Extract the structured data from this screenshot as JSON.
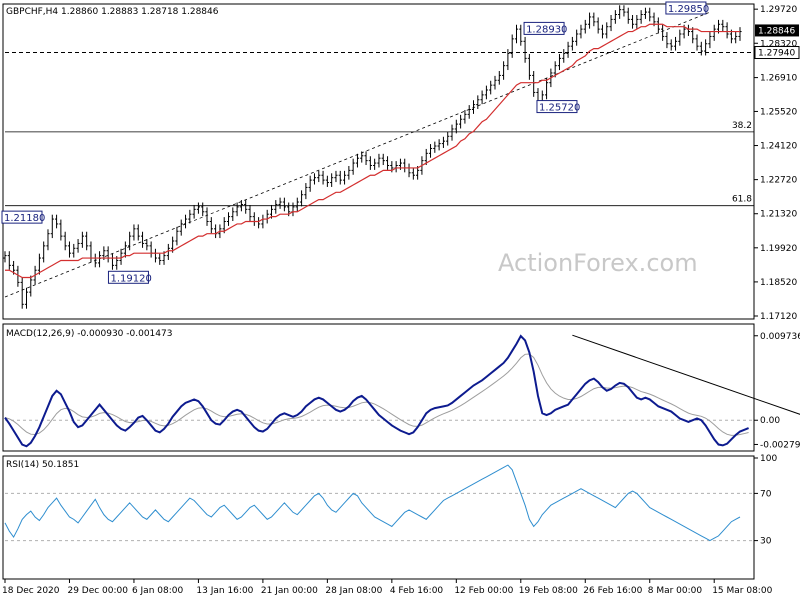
{
  "chart_data": [
    {
      "type": "candlestick",
      "header": "GBPCHF,H4  1.28860 1.28883 1.28718 1.28846",
      "watermark": "ActionForex.com",
      "ylim": [
        1.1712,
        1.2985
      ],
      "y_ticks": [
        "1.29720",
        "1.28320",
        "1.26910",
        "1.25520",
        "1.24120",
        "1.22720",
        "1.21320",
        "1.19920",
        "1.18520",
        "1.17120"
      ],
      "current_price": "1.28846",
      "hline_price": "1.27940",
      "fib_levels": [
        {
          "label": "38.2",
          "value": 1.2468
        },
        {
          "label": "61.8",
          "value": 1.2165
        }
      ],
      "annotations": [
        {
          "text": "1.21180",
          "x": 0,
          "y": 1.2118
        },
        {
          "text": "1.19120",
          "x": 25,
          "y": 1.1912
        },
        {
          "text": "1.28930",
          "x": 131,
          "y": 1.2893
        },
        {
          "text": "1.25720",
          "x": 134,
          "y": 1.2572
        },
        {
          "text": "1.29850",
          "x": 164,
          "y": 1.2985
        }
      ],
      "series": [
        {
          "kind": "close",
          "values": [
            1.196,
            1.192,
            1.19,
            1.185,
            1.176,
            1.181,
            1.186,
            1.19,
            1.195,
            1.2,
            1.205,
            1.211,
            1.209,
            1.204,
            1.2,
            1.197,
            1.199,
            1.201,
            1.204,
            1.2,
            1.195,
            1.193,
            1.196,
            1.198,
            1.195,
            1.192,
            1.194,
            1.197,
            1.2,
            1.204,
            1.207,
            1.204,
            1.201,
            1.2,
            1.197,
            1.195,
            1.194,
            1.196,
            1.199,
            1.202,
            1.206,
            1.209,
            1.211,
            1.213,
            1.215,
            1.216,
            1.214,
            1.21,
            1.207,
            1.205,
            1.207,
            1.21,
            1.212,
            1.214,
            1.216,
            1.217,
            1.215,
            1.212,
            1.21,
            1.209,
            1.211,
            1.213,
            1.215,
            1.217,
            1.218,
            1.216,
            1.214,
            1.216,
            1.218,
            1.221,
            1.224,
            1.227,
            1.228,
            1.229,
            1.227,
            1.226,
            1.228,
            1.229,
            1.227,
            1.229,
            1.231,
            1.234,
            1.236,
            1.237,
            1.235,
            1.233,
            1.234,
            1.236,
            1.235,
            1.233,
            1.232,
            1.233,
            1.234,
            1.232,
            1.23,
            1.229,
            1.231,
            1.235,
            1.238,
            1.24,
            1.241,
            1.242,
            1.243,
            1.245,
            1.248,
            1.25,
            1.252,
            1.254,
            1.256,
            1.258,
            1.26,
            1.262,
            1.264,
            1.266,
            1.268,
            1.27,
            1.274,
            1.279,
            1.285,
            1.289,
            1.284,
            1.277,
            1.27,
            1.263,
            1.258,
            1.262,
            1.267,
            1.271,
            1.274,
            1.277,
            1.279,
            1.282,
            1.284,
            1.287,
            1.289,
            1.291,
            1.294,
            1.292,
            1.289,
            1.287,
            1.29,
            1.293,
            1.295,
            1.297,
            1.296,
            1.293,
            1.291,
            1.293,
            1.295,
            1.296,
            1.294,
            1.292,
            1.289,
            1.286,
            1.283,
            1.282,
            1.284,
            1.287,
            1.289,
            1.288,
            1.285,
            1.282,
            1.28,
            1.283,
            1.286,
            1.289,
            1.291,
            1.29,
            1.287,
            1.285,
            1.286,
            1.288
          ]
        },
        {
          "kind": "sma",
          "values": [
            1.19,
            1.19,
            1.189,
            1.188,
            1.187,
            1.187,
            1.187,
            1.188,
            1.189,
            1.19,
            1.191,
            1.192,
            1.193,
            1.194,
            1.194,
            1.194,
            1.194,
            1.194,
            1.195,
            1.195,
            1.195,
            1.195,
            1.195,
            1.195,
            1.195,
            1.195,
            1.195,
            1.195,
            1.196,
            1.196,
            1.197,
            1.197,
            1.197,
            1.197,
            1.197,
            1.197,
            1.197,
            1.197,
            1.198,
            1.198,
            1.199,
            1.2,
            1.201,
            1.202,
            1.203,
            1.204,
            1.204,
            1.205,
            1.205,
            1.205,
            1.206,
            1.206,
            1.207,
            1.208,
            1.209,
            1.209,
            1.21,
            1.21,
            1.21,
            1.21,
            1.211,
            1.211,
            1.212,
            1.212,
            1.213,
            1.213,
            1.213,
            1.214,
            1.214,
            1.215,
            1.216,
            1.217,
            1.218,
            1.219,
            1.219,
            1.22,
            1.221,
            1.222,
            1.222,
            1.223,
            1.224,
            1.225,
            1.226,
            1.227,
            1.228,
            1.229,
            1.229,
            1.23,
            1.231,
            1.231,
            1.231,
            1.232,
            1.232,
            1.232,
            1.232,
            1.232,
            1.232,
            1.233,
            1.234,
            1.235,
            1.236,
            1.237,
            1.238,
            1.239,
            1.24,
            1.241,
            1.243,
            1.244,
            1.246,
            1.247,
            1.249,
            1.251,
            1.252,
            1.254,
            1.256,
            1.258,
            1.26,
            1.262,
            1.264,
            1.266,
            1.267,
            1.267,
            1.267,
            1.267,
            1.267,
            1.268,
            1.268,
            1.269,
            1.27,
            1.271,
            1.272,
            1.273,
            1.274,
            1.276,
            1.277,
            1.278,
            1.28,
            1.281,
            1.281,
            1.282,
            1.283,
            1.284,
            1.285,
            1.286,
            1.287,
            1.288,
            1.288,
            1.289,
            1.29,
            1.29,
            1.291,
            1.291,
            1.291,
            1.291,
            1.29,
            1.29,
            1.29,
            1.29,
            1.29,
            1.289,
            1.289,
            1.289,
            1.288,
            1.288,
            1.288,
            1.288,
            1.288,
            1.288,
            1.288,
            1.288,
            1.288,
            1.288
          ]
        }
      ]
    },
    {
      "type": "line",
      "title": "MACD(12,26,9) -0.000930 -0.001473",
      "ylim": [
        -0.0032,
        0.0104
      ],
      "y_ticks": [
        "0.009736",
        "0.00",
        "-0.002792"
      ],
      "series": [
        {
          "kind": "macd",
          "values": [
            0.0003,
            -0.0004,
            -0.0012,
            -0.002,
            -0.0028,
            -0.003,
            -0.0026,
            -0.0018,
            -0.0008,
            0.0004,
            0.0016,
            0.0028,
            0.0034,
            0.003,
            0.002,
            0.001,
            -0.0002,
            -0.0008,
            -0.0006,
            0.0,
            0.0006,
            0.0012,
            0.0018,
            0.0012,
            0.0006,
            0.0,
            -0.0006,
            -0.001,
            -0.0012,
            -0.0008,
            -0.0003,
            0.0003,
            0.0005,
            0.0,
            -0.0006,
            -0.0012,
            -0.0014,
            -0.001,
            -0.0004,
            0.0004,
            0.001,
            0.0016,
            0.002,
            0.0022,
            0.0024,
            0.0022,
            0.0016,
            0.0008,
            0.0,
            -0.0004,
            -0.0005,
            0.0,
            0.0006,
            0.001,
            0.0012,
            0.001,
            0.0004,
            -0.0002,
            -0.0008,
            -0.0012,
            -0.0013,
            -0.001,
            -0.0004,
            0.0002,
            0.0006,
            0.0008,
            0.0006,
            0.0004,
            0.0006,
            0.001,
            0.0016,
            0.002,
            0.0024,
            0.0026,
            0.0024,
            0.002,
            0.0016,
            0.0012,
            0.001,
            0.0012,
            0.0016,
            0.0022,
            0.0026,
            0.0028,
            0.0024,
            0.0018,
            0.0012,
            0.0006,
            0.0002,
            -0.0002,
            -0.0006,
            -0.0009,
            -0.0012,
            -0.0014,
            -0.0016,
            -0.0014,
            -0.0008,
            0.0,
            0.0008,
            0.0012,
            0.0014,
            0.0015,
            0.0016,
            0.0017,
            0.002,
            0.0024,
            0.0028,
            0.0032,
            0.0036,
            0.004,
            0.0043,
            0.0046,
            0.005,
            0.0054,
            0.0058,
            0.0062,
            0.0066,
            0.0072,
            0.008,
            0.0088,
            0.0097,
            0.0092,
            0.0078,
            0.0056,
            0.0028,
            0.0008,
            0.0006,
            0.0008,
            0.0012,
            0.0014,
            0.0016,
            0.0018,
            0.0024,
            0.003,
            0.0036,
            0.0042,
            0.0046,
            0.0048,
            0.0044,
            0.0038,
            0.0034,
            0.0036,
            0.004,
            0.0043,
            0.0042,
            0.0038,
            0.0032,
            0.0026,
            0.0024,
            0.0026,
            0.0024,
            0.002,
            0.0016,
            0.0014,
            0.0012,
            0.001,
            0.0006,
            0.0002,
            0.0,
            -0.0002,
            0.0,
            0.0002,
            0.0,
            -0.0006,
            -0.0014,
            -0.0022,
            -0.0028,
            -0.0029,
            -0.0027,
            -0.0022,
            -0.0017,
            -0.0013,
            -0.0011,
            -0.0009
          ]
        }
      ],
      "trendline_points": [
        [
          132,
          0.0098
        ],
        [
          186,
          0.0005
        ]
      ]
    },
    {
      "type": "line",
      "title": "RSI(14) 50.1851",
      "ylim": [
        0,
        100
      ],
      "y_ticks": [
        "100",
        "70",
        "30"
      ],
      "levels": [
        70,
        30
      ],
      "series": [
        {
          "kind": "rsi",
          "values": [
            45,
            38,
            33,
            40,
            48,
            52,
            55,
            50,
            47,
            52,
            58,
            62,
            66,
            60,
            55,
            50,
            48,
            45,
            50,
            55,
            60,
            65,
            58,
            52,
            48,
            46,
            50,
            54,
            58,
            62,
            58,
            54,
            50,
            48,
            52,
            56,
            52,
            48,
            46,
            50,
            54,
            58,
            62,
            66,
            64,
            60,
            56,
            52,
            50,
            54,
            58,
            60,
            56,
            52,
            48,
            50,
            54,
            58,
            60,
            56,
            52,
            48,
            50,
            54,
            58,
            62,
            58,
            54,
            52,
            56,
            60,
            64,
            68,
            70,
            66,
            60,
            56,
            54,
            58,
            62,
            66,
            70,
            68,
            62,
            58,
            54,
            50,
            48,
            46,
            44,
            42,
            46,
            50,
            54,
            56,
            54,
            52,
            50,
            48,
            52,
            56,
            60,
            64,
            66,
            68,
            70,
            72,
            74,
            76,
            78,
            80,
            82,
            84,
            86,
            88,
            90,
            92,
            94,
            90,
            80,
            70,
            60,
            48,
            42,
            46,
            52,
            56,
            60,
            62,
            64,
            66,
            68,
            70,
            72,
            74,
            72,
            70,
            68,
            66,
            64,
            62,
            60,
            58,
            62,
            66,
            70,
            72,
            70,
            66,
            62,
            58,
            56,
            54,
            52,
            50,
            48,
            46,
            44,
            42,
            40,
            38,
            36,
            34,
            32,
            30,
            32,
            34,
            38,
            42,
            46,
            48,
            50
          ]
        }
      ]
    }
  ],
  "x_axis": {
    "tick_labels": [
      "18 Dec 2020",
      "29 Dec 00:00",
      "6 Jan 08:00",
      "13 Jan 16:00",
      "21 Jan 00:00",
      "28 Jan 08:00",
      "4 Feb 16:00",
      "12 Feb 00:00",
      "19 Feb 08:00",
      "26 Feb 16:00",
      "8 Mar 00:00",
      "15 Mar 08:00"
    ],
    "tick_index": [
      0,
      15,
      30,
      45,
      60,
      75,
      90,
      105,
      120,
      135,
      150,
      165
    ]
  },
  "colors": {
    "price": "#000000",
    "sma": "#d32f2f",
    "macd": "#0d1b8f",
    "macd_signal": "#9e9e9e",
    "rsi": "#2f8ecf",
    "annotation_border": "#1a237e",
    "grid_dashed": "#b0b0b0"
  }
}
